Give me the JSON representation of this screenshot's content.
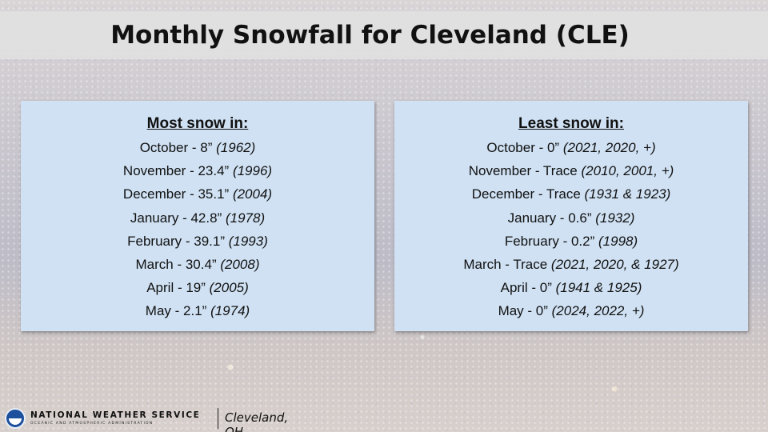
{
  "title": "Monthly Snowfall for Cleveland (CLE)",
  "most": {
    "heading": "Most snow in:",
    "rows": [
      {
        "label": "October - 8”",
        "years": "(1962)"
      },
      {
        "label": "November - 23.4”",
        "years": "(1996)"
      },
      {
        "label": "December - 35.1”",
        "years": "(2004)"
      },
      {
        "label": "January - 42.8”",
        "years": "(1978)"
      },
      {
        "label": "February - 39.1”",
        "years": "(1993)"
      },
      {
        "label": "March - 30.4”",
        "years": "(2008)"
      },
      {
        "label": "April - 19”",
        "years": "(2005)"
      },
      {
        "label": "May - 2.1”",
        "years": "(1974)"
      }
    ]
  },
  "least": {
    "heading": "Least snow in:",
    "rows": [
      {
        "label": "October - 0”",
        "years": "(2021, 2020, +)"
      },
      {
        "label": "November - Trace",
        "years": "(2010, 2001, +)"
      },
      {
        "label": "December - Trace",
        "years": "(1931 & 1923)"
      },
      {
        "label": "January - 0.6”",
        "years": "(1932)"
      },
      {
        "label": "February - 0.2”",
        "years": "(1998)"
      },
      {
        "label": "March - Trace",
        "years": "(2021, 2020, & 1927)"
      },
      {
        "label": "April - 0”",
        "years": "(1941 & 1925)"
      },
      {
        "label": "May - 0”",
        "years": "(2024, 2022, +)"
      }
    ]
  },
  "footer": {
    "agency": "NATIONAL WEATHER SERVICE",
    "agency_sub": "OCEANIC AND ATMOSPHERIC ADMINISTRATION",
    "office": "Cleveland, OH"
  }
}
